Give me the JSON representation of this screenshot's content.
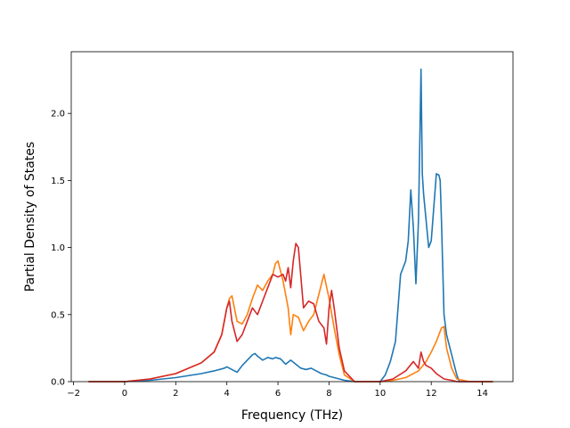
{
  "chart_data": {
    "type": "line",
    "title": "",
    "xlabel": "Frequency (THz)",
    "ylabel": "Partial Density of States",
    "xlim": [
      -2.09,
      15.2
    ],
    "ylim": [
      0.0,
      2.46
    ],
    "xticks": [
      -2,
      0,
      2,
      4,
      6,
      8,
      10,
      12,
      14
    ],
    "yticks": [
      0.0,
      0.5,
      1.0,
      1.5,
      2.0
    ],
    "xtick_labels": [
      "−2",
      "0",
      "2",
      "4",
      "6",
      "8",
      "10",
      "12",
      "14"
    ],
    "ytick_labels": [
      "0.0",
      "0.5",
      "1.0",
      "1.5",
      "2.0"
    ],
    "grid": false,
    "legend": "none",
    "series": [
      {
        "color": "#1f77b4",
        "x": [
          -1.4,
          0,
          1,
          2,
          3,
          3.5,
          3.9,
          4.0,
          4.2,
          4.4,
          4.6,
          4.8,
          5.0,
          5.1,
          5.2,
          5.4,
          5.6,
          5.8,
          5.9,
          6.1,
          6.3,
          6.5,
          6.7,
          6.9,
          7.1,
          7.3,
          7.5,
          7.7,
          7.9,
          8.0,
          8.2,
          8.4,
          8.6,
          9.0,
          10.0,
          10.2,
          10.4,
          10.6,
          10.8,
          11.0,
          11.1,
          11.2,
          11.3,
          11.4,
          11.5,
          11.6,
          11.65,
          11.7,
          11.8,
          11.9,
          12.0,
          12.1,
          12.2,
          12.3,
          12.35,
          12.4,
          12.5,
          12.6,
          12.8,
          13.0,
          13.1,
          13.5,
          14.4
        ],
        "y": [
          0,
          0,
          0.01,
          0.03,
          0.06,
          0.08,
          0.1,
          0.11,
          0.09,
          0.07,
          0.12,
          0.16,
          0.2,
          0.21,
          0.19,
          0.16,
          0.18,
          0.17,
          0.18,
          0.17,
          0.13,
          0.16,
          0.13,
          0.1,
          0.09,
          0.1,
          0.08,
          0.06,
          0.05,
          0.04,
          0.03,
          0.02,
          0.01,
          0,
          0,
          0.05,
          0.15,
          0.3,
          0.8,
          0.9,
          1.05,
          1.43,
          1.15,
          0.73,
          1.2,
          2.33,
          1.55,
          1.4,
          1.2,
          1.0,
          1.05,
          1.3,
          1.55,
          1.54,
          1.5,
          1.2,
          0.5,
          0.35,
          0.2,
          0.05,
          0,
          0,
          0
        ]
      },
      {
        "color": "#ff7f0e",
        "x": [
          -1.4,
          0,
          1,
          2,
          3,
          3.5,
          3.8,
          4.0,
          4.1,
          4.2,
          4.4,
          4.6,
          4.8,
          5.0,
          5.2,
          5.4,
          5.6,
          5.8,
          5.9,
          6.0,
          6.2,
          6.3,
          6.4,
          6.5,
          6.6,
          6.8,
          7.0,
          7.2,
          7.4,
          7.6,
          7.8,
          8.0,
          8.2,
          8.4,
          8.6,
          9.0,
          10.0,
          10.5,
          11.0,
          11.5,
          11.8,
          12.0,
          12.2,
          12.4,
          12.5,
          12.6,
          12.8,
          13.0,
          13.5,
          14.4
        ],
        "y": [
          0,
          0,
          0.02,
          0.06,
          0.14,
          0.22,
          0.35,
          0.55,
          0.62,
          0.64,
          0.45,
          0.43,
          0.5,
          0.62,
          0.72,
          0.68,
          0.75,
          0.8,
          0.88,
          0.9,
          0.75,
          0.65,
          0.55,
          0.35,
          0.5,
          0.48,
          0.38,
          0.45,
          0.5,
          0.65,
          0.8,
          0.62,
          0.4,
          0.2,
          0.05,
          0,
          0,
          0.01,
          0.03,
          0.08,
          0.15,
          0.22,
          0.3,
          0.4,
          0.41,
          0.25,
          0.1,
          0.02,
          0,
          0
        ]
      },
      {
        "color": "#d62728",
        "x": [
          -1.4,
          0,
          1,
          2,
          3,
          3.5,
          3.8,
          4.0,
          4.1,
          4.2,
          4.4,
          4.6,
          4.8,
          5.0,
          5.2,
          5.4,
          5.6,
          5.8,
          6.0,
          6.2,
          6.3,
          6.4,
          6.5,
          6.6,
          6.7,
          6.8,
          7.0,
          7.2,
          7.4,
          7.6,
          7.8,
          7.9,
          8.0,
          8.1,
          8.2,
          8.4,
          8.6,
          9.0,
          10.0,
          10.5,
          11.0,
          11.3,
          11.5,
          11.6,
          11.7,
          11.8,
          12.0,
          12.2,
          12.5,
          12.8,
          13.0,
          13.5,
          14.4
        ],
        "y": [
          0,
          0,
          0.02,
          0.06,
          0.14,
          0.22,
          0.35,
          0.55,
          0.6,
          0.45,
          0.3,
          0.35,
          0.45,
          0.55,
          0.5,
          0.6,
          0.7,
          0.8,
          0.78,
          0.8,
          0.75,
          0.85,
          0.7,
          0.9,
          1.03,
          1.0,
          0.55,
          0.6,
          0.58,
          0.45,
          0.4,
          0.28,
          0.55,
          0.68,
          0.55,
          0.25,
          0.08,
          0,
          0,
          0.02,
          0.08,
          0.15,
          0.1,
          0.22,
          0.15,
          0.12,
          0.1,
          0.06,
          0.02,
          0.01,
          0,
          0,
          0
        ]
      }
    ]
  }
}
